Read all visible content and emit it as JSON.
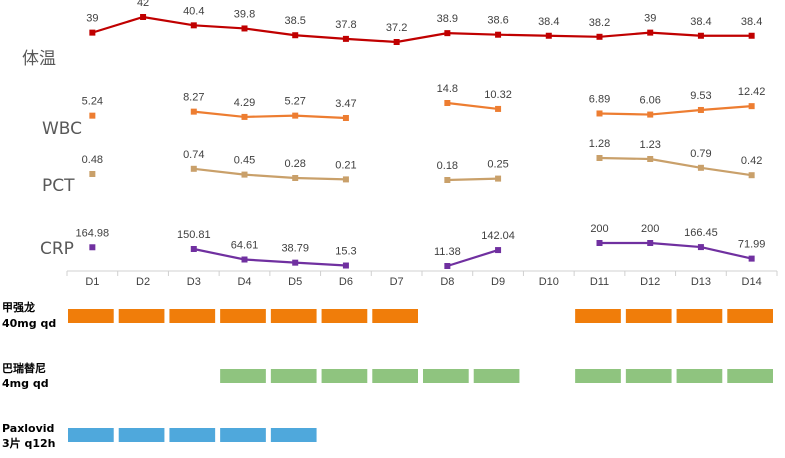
{
  "chart_data": {
    "type": "line",
    "categories": [
      "D1",
      "D2",
      "D3",
      "D4",
      "D5",
      "D6",
      "D7",
      "D8",
      "D9",
      "D10",
      "D11",
      "D12",
      "D13",
      "D14"
    ],
    "series": [
      {
        "name": "体温",
        "color": "#c00000",
        "values": [
          39,
          42,
          40.4,
          39.8,
          38.5,
          37.8,
          37.2,
          38.9,
          38.6,
          38.4,
          38.2,
          39,
          38.4,
          38.4
        ],
        "labels": [
          "39",
          "42",
          "40.4",
          "39.8",
          "38.5",
          "37.8",
          "37.2",
          "38.9",
          "38.6",
          "38.4",
          "38.2",
          "39",
          "38.4",
          "38.4"
        ]
      },
      {
        "name": "WBC",
        "color": "#ed7d31",
        "values": [
          5.24,
          null,
          8.27,
          4.29,
          5.27,
          3.47,
          null,
          14.8,
          10.32,
          null,
          6.89,
          6.06,
          9.53,
          12.42
        ],
        "labels": [
          "5.24",
          null,
          "8.27",
          "4.29",
          "5.27",
          "3.47",
          null,
          "14.8",
          "10.32",
          null,
          "6.89",
          "6.06",
          "9.53",
          "12.42"
        ]
      },
      {
        "name": "PCT",
        "color": "#c9a06a",
        "values": [
          0.48,
          null,
          0.74,
          0.45,
          0.28,
          0.21,
          null,
          0.18,
          0.25,
          null,
          1.28,
          1.23,
          0.79,
          0.42
        ],
        "labels": [
          "0.48",
          null,
          "0.74",
          "0.45",
          "0.28",
          "0.21",
          null,
          "0.18",
          "0.25",
          null,
          "1.28",
          "1.23",
          "0.79",
          "0.42"
        ]
      },
      {
        "name": "CRP",
        "color": "#7030a0",
        "values": [
          164.98,
          null,
          150.81,
          64.61,
          38.79,
          15.3,
          null,
          11.38,
          142.04,
          null,
          200,
          200,
          166.45,
          71.99
        ],
        "labels": [
          "164.98",
          null,
          "150.81",
          "64.61",
          "38.79",
          "15.3",
          null,
          "11.38",
          "142.04",
          null,
          "200",
          "200",
          "166.45",
          "71.99"
        ]
      }
    ],
    "medications": [
      {
        "name_line1": "甲强龙",
        "name_line2": "40mg qd",
        "color": "#f07d0a",
        "days": [
          "D1",
          "D2",
          "D3",
          "D4",
          "D5",
          "D6",
          "D7",
          "D11",
          "D12",
          "D13",
          "D14"
        ]
      },
      {
        "name_line1": "巴瑞替尼",
        "name_line2": "4mg qd",
        "color": "#8fc47f",
        "days": [
          "D4",
          "D5",
          "D6",
          "D7",
          "D8",
          "D9",
          "D11",
          "D12",
          "D13",
          "D14"
        ]
      },
      {
        "name_line1": "Paxlovid",
        "name_line2": "3片 q12h",
        "color": "#4fa8dc",
        "days": [
          "D1",
          "D2",
          "D3",
          "D4",
          "D5"
        ]
      }
    ],
    "title": "",
    "xlabel": "",
    "ylabel": ""
  }
}
